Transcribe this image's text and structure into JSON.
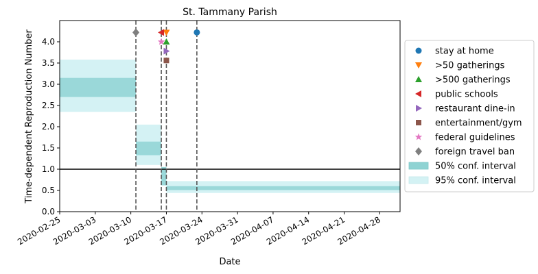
{
  "chart_data": {
    "type": "line",
    "title": "St. Tammany Parish",
    "xlabel": "Date",
    "ylabel": "Time-dependent Reproduction Number",
    "xlim": [
      "2020-02-25",
      "2020-05-02"
    ],
    "ylim": [
      0,
      4.5
    ],
    "x_ticks": [
      "2020-02-25",
      "2020-03-03",
      "2020-03-10",
      "2020-03-17",
      "2020-03-24",
      "2020-03-31",
      "2020-04-07",
      "2020-04-14",
      "2020-04-21",
      "2020-04-28"
    ],
    "y_ticks": [
      "0.0",
      "0.5",
      "1.0",
      "1.5",
      "2.0",
      "2.5",
      "3.0",
      "3.5",
      "4.0"
    ],
    "reference_line": {
      "y": 1.0,
      "color": "#000000"
    },
    "interventions": [
      {
        "name": "stay at home",
        "date": "2020-03-23",
        "y": 4.22,
        "marker": "circle",
        "color": "#1f77b4"
      },
      {
        "name": ">50 gatherings",
        "date": "2020-03-17",
        "y": 4.22,
        "marker": "triangle-down",
        "color": "#ff7f0e"
      },
      {
        "name": ">500 gatherings",
        "date": "2020-03-17",
        "y": 4.0,
        "marker": "triangle-up",
        "color": "#2ca02c"
      },
      {
        "name": "public schools",
        "date": "2020-03-16",
        "y": 4.22,
        "marker": "triangle-left",
        "color": "#d62728"
      },
      {
        "name": "restaurant dine-in",
        "date": "2020-03-17",
        "y": 3.78,
        "marker": "triangle-right",
        "color": "#9467bd"
      },
      {
        "name": "entertainment/gym",
        "date": "2020-03-17",
        "y": 3.56,
        "marker": "square",
        "color": "#8c564b"
      },
      {
        "name": "federal guidelines",
        "date": "2020-03-16",
        "y": 4.0,
        "marker": "star",
        "color": "#e377c2"
      },
      {
        "name": "foreign travel ban",
        "date": "2020-03-11",
        "y": 4.22,
        "marker": "diamond",
        "color": "#7f7f7f"
      }
    ],
    "vertical_lines": [
      "2020-03-11",
      "2020-03-16",
      "2020-03-17",
      "2020-03-23"
    ],
    "intervals": [
      {
        "start": "2020-02-25",
        "end": "2020-03-11",
        "ci50": [
          2.7,
          3.15
        ],
        "ci95": [
          2.35,
          3.58
        ]
      },
      {
        "start": "2020-03-11",
        "end": "2020-03-16",
        "ci50": [
          1.33,
          1.65
        ],
        "ci95": [
          1.1,
          2.05
        ]
      },
      {
        "start": "2020-03-16",
        "end": "2020-03-17",
        "ci50": [
          0.62,
          1.05
        ],
        "ci95": [
          0.62,
          1.05
        ]
      },
      {
        "start": "2020-03-17",
        "end": "2020-05-02",
        "ci50": [
          0.51,
          0.6
        ],
        "ci95": [
          0.44,
          0.72
        ]
      }
    ],
    "legend": {
      "placement": "right",
      "entries": [
        "stay at home",
        ">50 gatherings",
        ">500 gatherings",
        "public schools",
        "restaurant dine-in",
        "entertainment/gym",
        "federal guidelines",
        "foreign travel ban",
        "50% conf. interval",
        "95% conf. interval"
      ]
    },
    "colors": {
      "ci50": "#8fd3d3",
      "ci95": "#d4f2f4"
    }
  }
}
